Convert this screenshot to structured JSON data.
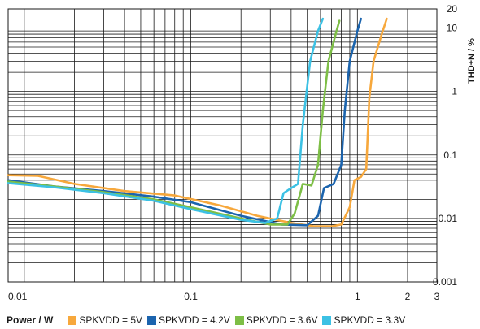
{
  "chart_data": {
    "type": "line",
    "xlabel": "Power / W",
    "ylabel": "THD+N / %",
    "x_scale": "log",
    "y_scale": "log",
    "xlim": [
      0.008,
      3
    ],
    "ylim": [
      0.001,
      20
    ],
    "x_tick_labels": [
      "0.01",
      "0.1",
      "1",
      "2",
      "3"
    ],
    "x_tick_values": [
      0.01,
      0.1,
      1,
      2,
      3
    ],
    "y_tick_labels": [
      "0.001",
      "0.01",
      "0.1",
      "1",
      "10",
      "20"
    ],
    "y_tick_values": [
      0.001,
      0.01,
      0.1,
      1,
      10,
      20
    ],
    "grid": true,
    "legend_position": "bottom",
    "series": [
      {
        "name": "SPKVDD = 5V",
        "color": "#F7A83C",
        "points": [
          [
            0.008,
            0.048
          ],
          [
            0.012,
            0.047
          ],
          [
            0.02,
            0.035
          ],
          [
            0.04,
            0.027
          ],
          [
            0.08,
            0.023
          ],
          [
            0.15,
            0.016
          ],
          [
            0.25,
            0.011
          ],
          [
            0.4,
            0.0085
          ],
          [
            0.55,
            0.0075
          ],
          [
            0.7,
            0.0075
          ],
          [
            0.8,
            0.008
          ],
          [
            0.9,
            0.015
          ],
          [
            0.96,
            0.04
          ],
          [
            1.05,
            0.045
          ],
          [
            1.13,
            0.06
          ],
          [
            1.18,
            0.8
          ],
          [
            1.25,
            3
          ],
          [
            1.4,
            8
          ],
          [
            1.5,
            14
          ]
        ]
      },
      {
        "name": "SPKVDD = 4.2V",
        "color": "#1B64AE",
        "points": [
          [
            0.008,
            0.04
          ],
          [
            0.015,
            0.032
          ],
          [
            0.03,
            0.027
          ],
          [
            0.06,
            0.022
          ],
          [
            0.1,
            0.018
          ],
          [
            0.2,
            0.011
          ],
          [
            0.35,
            0.008
          ],
          [
            0.5,
            0.0078
          ],
          [
            0.58,
            0.011
          ],
          [
            0.63,
            0.03
          ],
          [
            0.72,
            0.035
          ],
          [
            0.8,
            0.07
          ],
          [
            0.84,
            0.5
          ],
          [
            0.9,
            3
          ],
          [
            1,
            9
          ],
          [
            1.05,
            14
          ]
        ]
      },
      {
        "name": "SPKVDD = 3.6V",
        "color": "#7DBE46",
        "points": [
          [
            0.008,
            0.038
          ],
          [
            0.015,
            0.032
          ],
          [
            0.03,
            0.026
          ],
          [
            0.06,
            0.02
          ],
          [
            0.1,
            0.015
          ],
          [
            0.2,
            0.01
          ],
          [
            0.3,
            0.008
          ],
          [
            0.38,
            0.008
          ],
          [
            0.42,
            0.012
          ],
          [
            0.47,
            0.035
          ],
          [
            0.53,
            0.033
          ],
          [
            0.58,
            0.07
          ],
          [
            0.62,
            0.5
          ],
          [
            0.67,
            3
          ],
          [
            0.75,
            9
          ],
          [
            0.78,
            13
          ]
        ]
      },
      {
        "name": "SPKVDD = 3.3V",
        "color": "#3CC1E4",
        "points": [
          [
            0.008,
            0.036
          ],
          [
            0.015,
            0.031
          ],
          [
            0.03,
            0.025
          ],
          [
            0.06,
            0.019
          ],
          [
            0.1,
            0.014
          ],
          [
            0.2,
            0.0095
          ],
          [
            0.28,
            0.0085
          ],
          [
            0.33,
            0.01
          ],
          [
            0.36,
            0.025
          ],
          [
            0.4,
            0.03
          ],
          [
            0.44,
            0.035
          ],
          [
            0.47,
            0.3
          ],
          [
            0.52,
            3
          ],
          [
            0.58,
            9
          ],
          [
            0.62,
            14
          ]
        ]
      }
    ]
  }
}
